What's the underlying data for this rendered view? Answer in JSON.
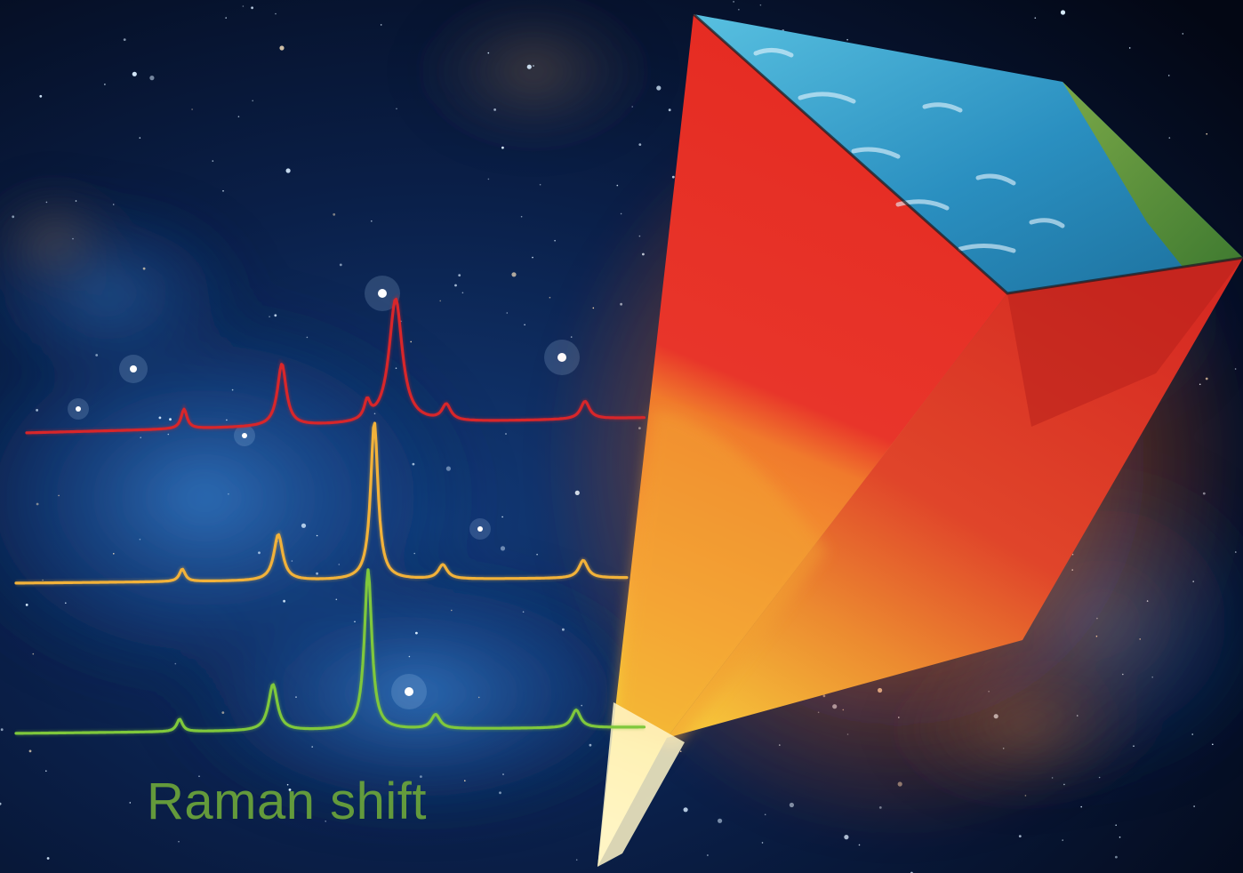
{
  "caption": {
    "text": "Raman shift",
    "color": "#6ea83a"
  },
  "spectra": [
    {
      "color": "#d8262a"
    },
    {
      "color": "#f2b23a"
    },
    {
      "color": "#7fc83c"
    }
  ],
  "colors": {
    "space": "#030714",
    "nebula": "#1d5aa8",
    "crust_ocean": "#2a8fc0",
    "mantle_red": "#e52b22",
    "core_yellow": "#f7d33a",
    "glow": "#ff8a2a"
  }
}
